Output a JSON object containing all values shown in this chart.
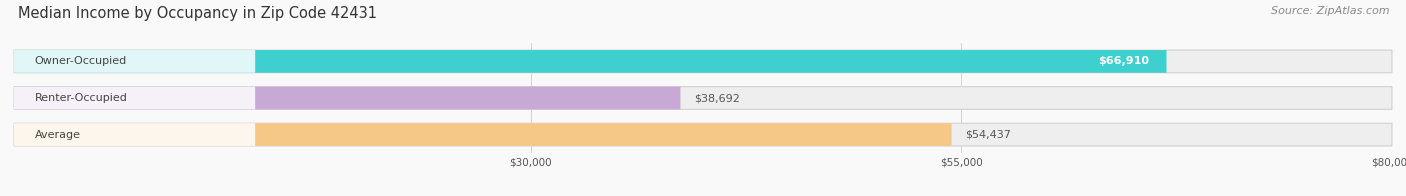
{
  "title": "Median Income by Occupancy in Zip Code 42431",
  "source": "Source: ZipAtlas.com",
  "categories": [
    "Owner-Occupied",
    "Renter-Occupied",
    "Average"
  ],
  "values": [
    66910,
    38692,
    54437
  ],
  "labels": [
    "$66,910",
    "$38,692",
    "$54,437"
  ],
  "bar_colors": [
    "#3ecfcf",
    "#c8a8d4",
    "#f5c888"
  ],
  "bar_bg_colors": [
    "#eeeeee",
    "#eeeeee",
    "#eeeeee"
  ],
  "label_inside": [
    true,
    false,
    false
  ],
  "xlim": [
    0,
    80000
  ],
  "xticks": [
    30000,
    55000,
    80000
  ],
  "xticklabels": [
    "$30,000",
    "$55,000",
    "$80,000"
  ],
  "title_fontsize": 10.5,
  "source_fontsize": 8,
  "label_fontsize": 8,
  "category_fontsize": 8,
  "background_color": "#f9f9f9",
  "bar_height": 0.62,
  "rounding_size": 0.25
}
